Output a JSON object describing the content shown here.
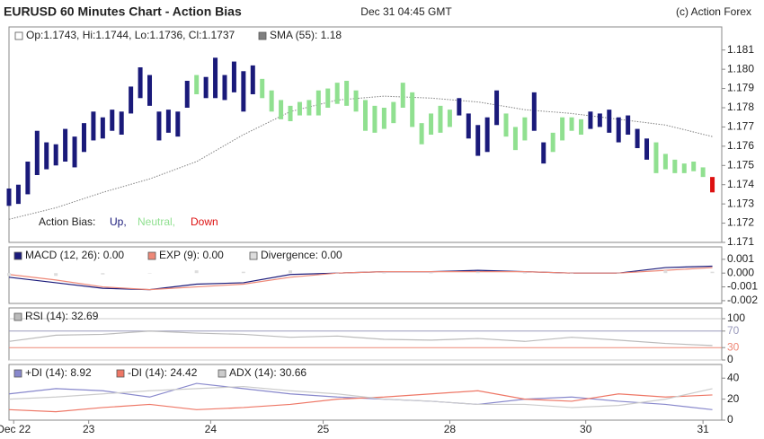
{
  "header": {
    "title": "EURUSD 60 Minutes Chart - Action Bias",
    "timestamp": "Dec 31 04:45 GMT",
    "copyright": "(c) Action Forex"
  },
  "x_axis": {
    "xlim": [
      0,
      152
    ],
    "xticks": [
      {
        "value": 1,
        "label": "Dec 22"
      },
      {
        "value": 17,
        "label": "23"
      },
      {
        "value": 43,
        "label": "24"
      },
      {
        "value": 67,
        "label": "25"
      },
      {
        "value": 94,
        "label": "28"
      },
      {
        "value": 123,
        "label": "30"
      },
      {
        "value": 148,
        "label": "31"
      }
    ]
  },
  "chart_data": [
    {
      "type": "ohlc",
      "ohlc_label": "Op:1.1743, Hi:1.1744, Lo:1.1736, Cl:1.1737",
      "bias_label": "Action Bias:",
      "ylim": [
        1.171,
        1.1822
      ],
      "yticks": [
        1.171,
        1.172,
        1.173,
        1.174,
        1.175,
        1.176,
        1.177,
        1.178,
        1.179,
        {
          "value": 1.18,
          "label": "1.180"
        },
        1.181
      ],
      "series": [
        {
          "name": "Up,",
          "color": "#1a1a7a",
          "x": [
            0,
            2,
            4,
            6,
            8,
            10,
            12,
            14,
            16,
            18,
            20,
            22,
            24,
            26,
            28,
            30,
            32,
            34,
            36,
            38,
            42,
            44,
            46,
            48,
            50,
            52,
            96,
            98,
            100,
            102,
            104,
            112,
            114,
            124,
            126,
            128,
            130,
            132,
            134,
            136
          ],
          "high": [
            1.1738,
            1.174,
            1.1752,
            1.1768,
            1.1762,
            1.1761,
            1.1769,
            1.1765,
            1.1772,
            1.1778,
            1.1775,
            1.1779,
            1.1778,
            1.1791,
            1.1801,
            1.1797,
            1.1778,
            1.1779,
            1.1778,
            1.1794,
            1.1796,
            1.1806,
            1.1797,
            1.1804,
            1.1799,
            1.1802,
            1.1785,
            1.1777,
            1.1771,
            1.1775,
            1.1789,
            1.1788,
            1.1762,
            1.1778,
            1.1777,
            1.1779,
            1.1775,
            1.1776,
            1.1769,
            1.1764
          ],
          "low": [
            1.1729,
            1.173,
            1.1735,
            1.1745,
            1.1748,
            1.175,
            1.1752,
            1.1749,
            1.1757,
            1.1763,
            1.1764,
            1.1768,
            1.1766,
            1.1777,
            1.1785,
            1.1781,
            1.1763,
            1.1767,
            1.1765,
            1.178,
            1.1785,
            1.1785,
            1.1784,
            1.1788,
            1.1778,
            1.1787,
            1.1776,
            1.1764,
            1.1755,
            1.1757,
            1.1771,
            1.1768,
            1.1751,
            1.1769,
            1.177,
            1.1767,
            1.1762,
            1.1766,
            1.1759,
            1.1753
          ]
        },
        {
          "name": "Neutral,",
          "color": "#90e090",
          "x": [
            40,
            54,
            56,
            58,
            60,
            62,
            64,
            66,
            68,
            70,
            72,
            74,
            76,
            78,
            80,
            82,
            84,
            86,
            88,
            90,
            92,
            94,
            106,
            108,
            110,
            116,
            118,
            120,
            122,
            138,
            140,
            142,
            144,
            146,
            148
          ],
          "high": [
            1.1797,
            1.1795,
            1.1789,
            1.1784,
            1.1781,
            1.1783,
            1.1784,
            1.1789,
            1.179,
            1.1793,
            1.1794,
            1.1789,
            1.1784,
            1.1781,
            1.178,
            1.1783,
            1.1793,
            1.1788,
            1.1772,
            1.1777,
            1.1781,
            1.1779,
            1.1777,
            1.177,
            1.1775,
            1.1767,
            1.1775,
            1.1775,
            1.1774,
            1.1762,
            1.1756,
            1.1753,
            1.1751,
            1.1752,
            1.1749
          ],
          "low": [
            1.1787,
            1.1785,
            1.1778,
            1.1774,
            1.1773,
            1.1776,
            1.1776,
            1.1776,
            1.178,
            1.1782,
            1.1781,
            1.1778,
            1.1768,
            1.1767,
            1.1769,
            1.1772,
            1.178,
            1.177,
            1.1761,
            1.1766,
            1.1767,
            1.177,
            1.1765,
            1.1758,
            1.1763,
            1.1757,
            1.1763,
            1.1768,
            1.1766,
            1.1746,
            1.1748,
            1.1746,
            1.1746,
            1.1747,
            1.1744
          ]
        },
        {
          "name": "Down",
          "color": "#dd1111",
          "x": [
            150
          ],
          "high": [
            1.1744
          ],
          "low": [
            1.1736
          ]
        }
      ],
      "sma": {
        "name": "SMA (55): 1.18",
        "color": "#808080",
        "x": [
          0,
          10,
          20,
          30,
          40,
          50,
          60,
          70,
          80,
          90,
          100,
          110,
          120,
          130,
          140,
          150
        ],
        "values": [
          1.1722,
          1.1728,
          1.1736,
          1.1743,
          1.1752,
          1.1766,
          1.1778,
          1.1784,
          1.1786,
          1.1785,
          1.1783,
          1.1779,
          1.1777,
          1.1774,
          1.1771,
          1.1765
        ]
      }
    },
    {
      "type": "line",
      "ylim": [
        -0.0022,
        0.0019
      ],
      "yticks": [
        0.001,
        {
          "value": 0,
          "label": "0.000"
        },
        -0.001,
        -0.002
      ],
      "x": [
        0,
        10,
        20,
        30,
        40,
        50,
        60,
        70,
        80,
        90,
        100,
        110,
        120,
        130,
        140,
        150
      ],
      "series": [
        {
          "name": "MACD (12, 26): 0.00",
          "color": "#1a1a7a",
          "values": [
            -0.0003,
            -0.0007,
            -0.0011,
            -0.0012,
            -0.0008,
            -0.0007,
            -0.0001,
            0,
            0.0001,
            0.0001,
            0.0002,
            0.0001,
            0,
            0,
            0.0004,
            0.0005
          ]
        },
        {
          "name": "EXP (9): 0.00",
          "color": "#ee8877",
          "values": [
            -0.0001,
            -0.0005,
            -0.001,
            -0.0012,
            -0.001,
            -0.0008,
            -0.0003,
            0,
            0.0001,
            0.0001,
            0.0001,
            0.0001,
            0,
            0,
            0.0002,
            0.0004
          ]
        },
        {
          "name": "Divergence: 0.00",
          "color": "#dddddd",
          "kind": "bar",
          "values": [
            -0.0002,
            -0.0002,
            -0.0001,
            0,
            0.0002,
            0.0001,
            0.0002,
            0,
            0,
            0,
            0.0001,
            0,
            0,
            0,
            0.0002,
            0.0001
          ]
        }
      ]
    },
    {
      "type": "line",
      "ylim": [
        0,
        126
      ],
      "yticks": [
        100,
        70,
        30,
        0
      ],
      "ytick_label_colors": [
        "#222222",
        "#9999bb",
        "#ee8877",
        "#222222"
      ],
      "grid_colors": [
        "#cccccc",
        "#9999bb",
        "#ee8877",
        "#cccccc"
      ],
      "x": [
        0,
        10,
        20,
        30,
        40,
        50,
        60,
        70,
        80,
        90,
        100,
        110,
        120,
        130,
        140,
        150
      ],
      "series": [
        {
          "name": "RSI (14): 32.69",
          "color": "#bbbbbb",
          "values": [
            45,
            60,
            62,
            70,
            65,
            62,
            55,
            58,
            50,
            48,
            52,
            45,
            55,
            48,
            40,
            35
          ]
        }
      ]
    },
    {
      "type": "line",
      "ylim": [
        0,
        53
      ],
      "yticks": [
        40,
        20,
        0
      ],
      "x": [
        0,
        10,
        20,
        30,
        40,
        50,
        60,
        70,
        80,
        90,
        100,
        110,
        120,
        130,
        140,
        150
      ],
      "series": [
        {
          "name": "+DI (14): 8.92",
          "color": "#8888cc",
          "values": [
            25,
            30,
            28,
            22,
            35,
            30,
            25,
            22,
            20,
            18,
            15,
            20,
            22,
            18,
            15,
            10
          ]
        },
        {
          "name": "-DI (14): 24.42",
          "color": "#ee7766",
          "values": [
            10,
            8,
            12,
            15,
            10,
            12,
            15,
            20,
            22,
            25,
            28,
            20,
            18,
            25,
            22,
            24
          ]
        },
        {
          "name": "ADX (14): 30.66",
          "color": "#cccccc",
          "values": [
            20,
            22,
            25,
            28,
            30,
            32,
            28,
            25,
            20,
            18,
            15,
            15,
            12,
            14,
            20,
            30
          ]
        }
      ]
    }
  ]
}
